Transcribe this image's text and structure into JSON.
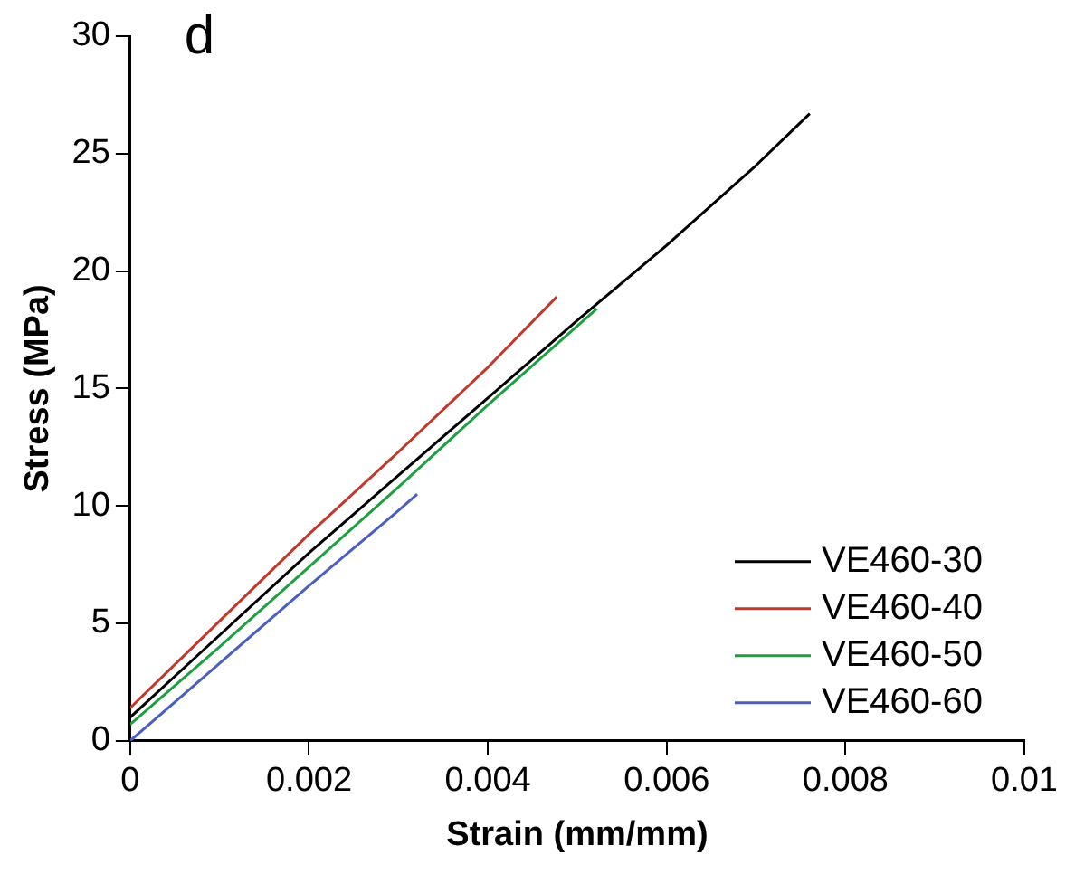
{
  "chart_data": {
    "type": "line",
    "title": "d",
    "xlabel": "Strain (mm/mm)",
    "ylabel": "Stress (MPa)",
    "xlim": [
      0,
      0.01
    ],
    "xticks": [
      0,
      0.002,
      0.004,
      0.006,
      0.008,
      0.01
    ],
    "ylim": [
      0,
      30
    ],
    "yticks": [
      0,
      5,
      10,
      15,
      20,
      25,
      30
    ],
    "grid": false,
    "legend": "bottom right",
    "marker": "none",
    "line_style": "solid",
    "series": [
      {
        "name": "VE460-30",
        "color": "#000000",
        "x": [
          0,
          0.001,
          0.002,
          0.003,
          0.004,
          0.005,
          0.006,
          0.007,
          0.0076
        ],
        "values": [
          1.0,
          4.5,
          8.0,
          11.3,
          14.6,
          17.9,
          21.1,
          24.5,
          26.7
        ]
      },
      {
        "name": "VE460-40",
        "color": "#c0392b",
        "x": [
          0,
          0.001,
          0.002,
          0.003,
          0.004,
          0.00477
        ],
        "values": [
          1.4,
          5.1,
          8.8,
          12.3,
          15.9,
          18.9
        ]
      },
      {
        "name": "VE460-50",
        "color": "#1fa040",
        "x": [
          0,
          0.001,
          0.002,
          0.003,
          0.004,
          0.00522
        ],
        "values": [
          0.7,
          4.0,
          7.4,
          10.8,
          14.3,
          18.4
        ]
      },
      {
        "name": "VE460-60",
        "color": "#4a5fc1",
        "x": [
          0,
          0.001,
          0.002,
          0.003,
          0.00321
        ],
        "values": [
          0,
          3.3,
          6.6,
          9.8,
          10.5
        ]
      }
    ]
  }
}
